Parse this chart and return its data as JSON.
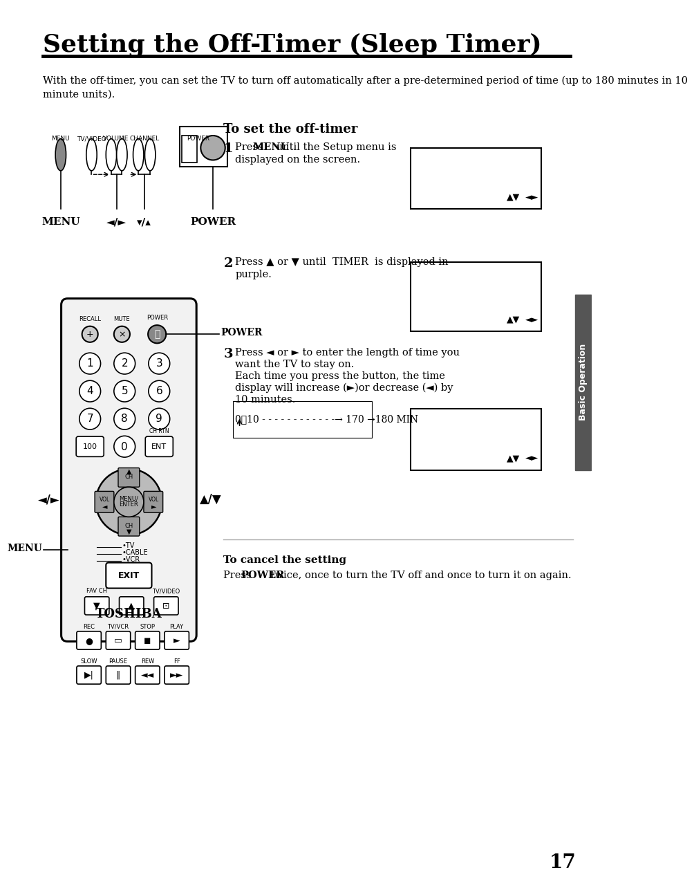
{
  "title": "Setting the Off-Timer (Sleep Timer)",
  "bg_color": "#ffffff",
  "text_color": "#000000",
  "intro_line1": "With the off-timer, you can set the TV to turn off automatically after a pre-determined period of time (up to 180 minutes in 10",
  "intro_line2": "minute units).",
  "section_title": "To set the off-timer",
  "step1_num": "1",
  "step2_num": "2",
  "step3_num": "3",
  "step1_a": "Press ",
  "step1_b": "MENU",
  "step1_c": " until the Setup menu is",
  "step1_d": "displayed on the screen.",
  "step2_a": "Press ▲ or ▼ until  TIMER  is displayed in",
  "step2_b": "purple.",
  "step3_a": "Press ◄ or ► to enter the length of time you",
  "step3_b": "want the TV to stay on.",
  "step3_c": "Each time you press the button, the time",
  "step3_d": "display will increase (►)or decrease (◄) by",
  "step3_e": "10 minutes.",
  "timer_line": "0➒10 - - - - - - - - - - - -→ 170 →180 MIN",
  "cancel_title": "To cancel the setting",
  "cancel_a": "Press ",
  "cancel_b": "POWER",
  "cancel_c": " twice, once to turn the TV off and once to turn it on again.",
  "page_number": "17",
  "sidebar_text": "Basic Operation",
  "menu_top_labels": [
    "MENU",
    "TV/VIDEO",
    "VOLUME",
    "CHANNEL",
    "POWER"
  ],
  "bottom_labels": [
    "MENU",
    "◄/►",
    "▾/▴",
    "POWER"
  ]
}
